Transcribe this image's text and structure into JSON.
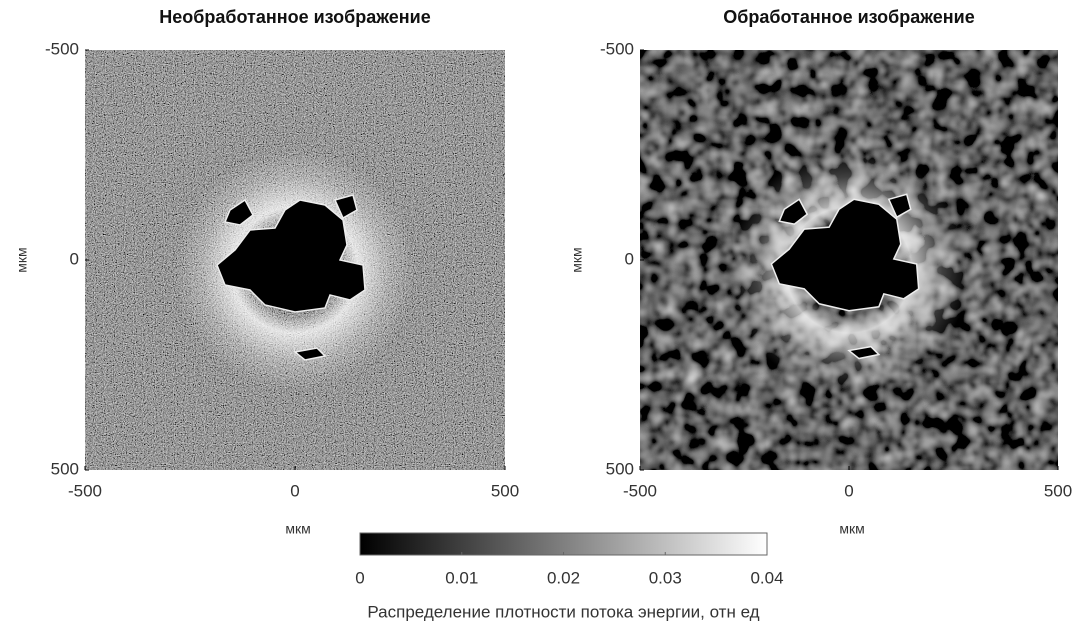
{
  "chart_data": [
    {
      "type": "image",
      "title": "Необработанное изображение",
      "xlabel": "мкм",
      "ylabel": "мкм",
      "xlim": [
        -500,
        500
      ],
      "ylim": [
        -500,
        500
      ],
      "yreverse": true,
      "xticks": [
        -500,
        0,
        500
      ],
      "yticks": [
        -500,
        0,
        500
      ]
    },
    {
      "type": "image",
      "title": "Обработанное изображение",
      "xlabel": "мкм",
      "ylabel": "мкм",
      "xlim": [
        -500,
        500
      ],
      "ylim": [
        -500,
        500
      ],
      "yreverse": true,
      "xticks": [
        -500,
        0,
        500
      ],
      "yticks": [
        -500,
        0,
        500
      ]
    },
    {
      "type": "colorbar",
      "label": "Распределение плотности потока энергии, отн ед",
      "clim": [
        0,
        0.04
      ],
      "ticks": [
        0,
        0.01,
        0.02,
        0.03,
        0.04
      ],
      "colormap": "gray"
    }
  ]
}
